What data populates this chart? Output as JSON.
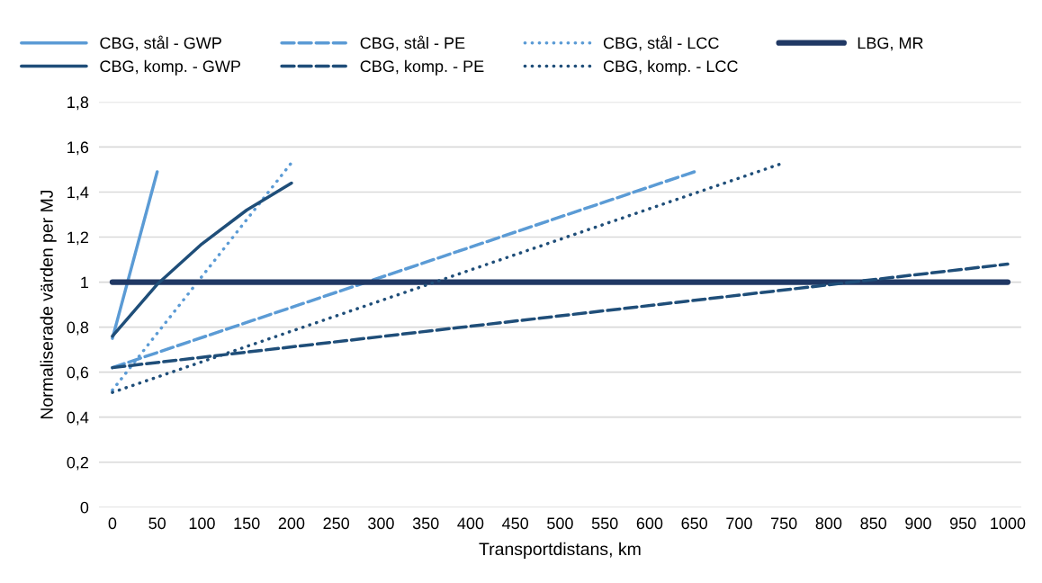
{
  "chart_data": {
    "type": "line",
    "xlabel": "Transportdistans, km",
    "ylabel": "Normaliserade värden per MJ",
    "xlim": [
      -15,
      1015
    ],
    "xticks": [
      0,
      50,
      100,
      150,
      200,
      250,
      300,
      350,
      400,
      450,
      500,
      550,
      600,
      650,
      700,
      750,
      800,
      850,
      900,
      950,
      1000
    ],
    "ylim": [
      0,
      1.8
    ],
    "yticks": [
      {
        "value": 0,
        "label": "0"
      },
      {
        "value": 0.2,
        "label": "0,2"
      },
      {
        "value": 0.4,
        "label": "0,4"
      },
      {
        "value": 0.6,
        "label": "0,6"
      },
      {
        "value": 0.8,
        "label": "0,8"
      },
      {
        "value": 1,
        "label": "1"
      },
      {
        "value": 1.2,
        "label": "1,2"
      },
      {
        "value": 1.4,
        "label": "1,4"
      },
      {
        "value": 1.6,
        "label": "1,6"
      },
      {
        "value": 1.8,
        "label": "1,8"
      }
    ],
    "grid": "y",
    "legend": "top",
    "marker": "none",
    "series": [
      {
        "name": "CBG, stål - GWP",
        "color": "#5b9bd5",
        "line_style": "solid",
        "x": [
          0,
          50
        ],
        "values": [
          0.75,
          1.49
        ]
      },
      {
        "name": "CBG, stål - PE",
        "color": "#5b9bd5",
        "line_style": "dashed",
        "x": [
          0,
          650
        ],
        "values": [
          0.62,
          1.49
        ]
      },
      {
        "name": "CBG, stål - LCC",
        "color": "#5b9bd5",
        "line_style": "dotted",
        "x": [
          0,
          200
        ],
        "values": [
          0.52,
          1.53
        ]
      },
      {
        "name": "LBG, MR",
        "color": "#203864",
        "line_style": "solid",
        "x": [
          0,
          1000
        ],
        "values": [
          1,
          1
        ]
      },
      {
        "name": "CBG, komp. - GWP",
        "color": "#1f4e79",
        "line_style": "solid",
        "x": [
          0,
          50,
          100,
          150,
          200
        ],
        "values": [
          0.76,
          0.99,
          1.17,
          1.32,
          1.44
        ]
      },
      {
        "name": "CBG, komp. - PE",
        "color": "#1f4e79",
        "line_style": "dashed",
        "x": [
          0,
          1000
        ],
        "values": [
          0.62,
          1.08
        ]
      },
      {
        "name": "CBG, komp. - LCC",
        "color": "#1f4e79",
        "line_style": "dotted",
        "x": [
          0,
          750
        ],
        "values": [
          0.51,
          1.53
        ]
      }
    ]
  }
}
